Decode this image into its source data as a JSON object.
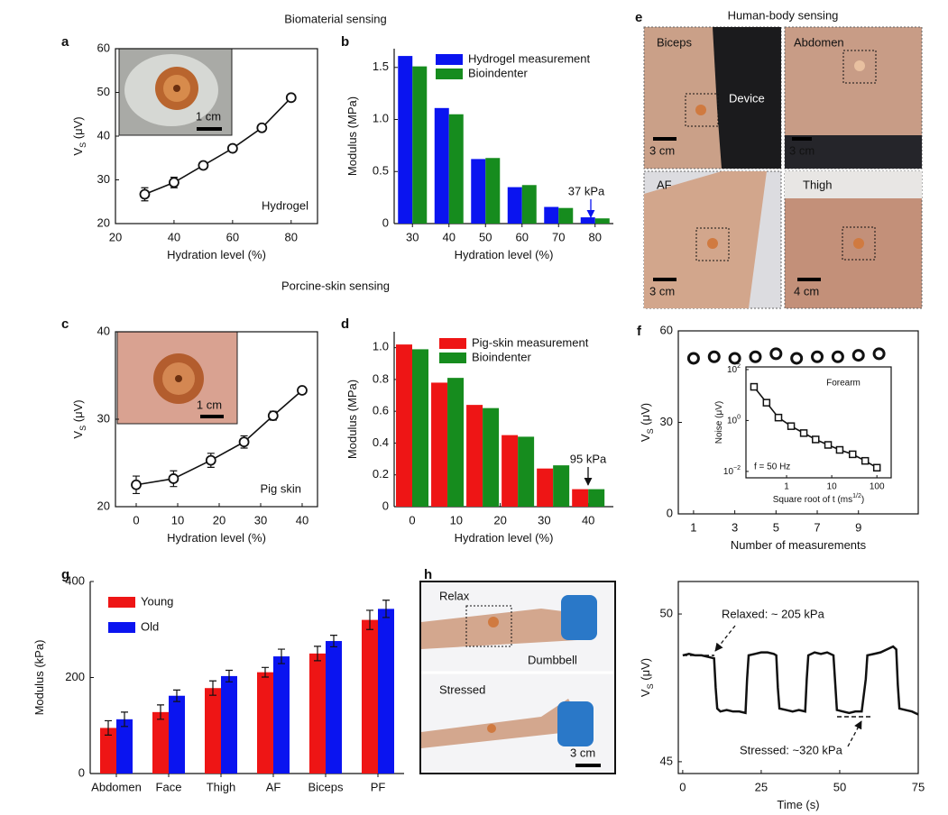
{
  "headings": [
    "Biomaterial sensing",
    "Porcine-skin sensing",
    "Human-body sensing"
  ],
  "photo_panels": [
    {
      "panel": "e",
      "labels": [
        "Biceps",
        "Device",
        "3 cm",
        "Abdomen",
        "3 cm",
        "AF",
        "3 cm",
        "Thigh",
        "4 cm"
      ]
    },
    {
      "panel": "h",
      "labels": [
        "Relax",
        "Dumbbell",
        "Stressed",
        "3 cm"
      ]
    }
  ],
  "chart_data": [
    {
      "type": "line",
      "panel": "a",
      "inset_label": "1 cm",
      "xlabel": "Hydration level (%)",
      "ylabel": "V",
      "ylabel_sub": "S",
      "ylabel_unit": " (μV)",
      "x": [
        30,
        40,
        50,
        60,
        70,
        80
      ],
      "series": [
        {
          "name": "Hydrogel",
          "color": "#111111",
          "marker": "circle",
          "values": [
            26.7,
            29.4,
            33.3,
            37.2,
            41.9,
            48.8
          ],
          "errors": [
            1.5,
            1.2,
            0.8,
            0.6,
            0.5,
            0.6
          ]
        }
      ],
      "annotations": [
        "Hydrogel"
      ],
      "xlim": [
        20,
        89
      ],
      "xticks": [
        20,
        40,
        60,
        80
      ],
      "ylim": [
        20,
        60
      ],
      "yticks": [
        20,
        30,
        40,
        50,
        60
      ]
    },
    {
      "type": "bar",
      "panel": "b",
      "legend": "upper right",
      "xlabel": "Hydration level (%)",
      "ylabel": "Modulus (MPa)",
      "categories": [
        "30",
        "40",
        "50",
        "60",
        "70",
        "80"
      ],
      "series": [
        {
          "name": "Hydrogel measurement",
          "color": "#0a14f0",
          "values": [
            1.61,
            1.11,
            0.62,
            0.35,
            0.16,
            0.06
          ]
        },
        {
          "name": "Bioindenter",
          "color": "#168c1e",
          "values": [
            1.51,
            1.05,
            0.63,
            0.37,
            0.15,
            0.05
          ]
        }
      ],
      "annotations": [
        "37 kPa"
      ],
      "ylim": [
        0,
        1.68
      ],
      "yticks": [
        0,
        0.5,
        {
          "value": 1,
          "label": "1.0"
        },
        1.5
      ]
    },
    {
      "type": "line",
      "panel": "c",
      "inset_label": "1 cm",
      "xlabel": "Hydration level (%)",
      "ylabel": "V",
      "ylabel_sub": "S",
      "ylabel_unit": " (μV)",
      "x": [
        0,
        9,
        18,
        26,
        33,
        40
      ],
      "series": [
        {
          "name": "Pig skin",
          "color": "#111111",
          "marker": "circle",
          "values": [
            22.5,
            23.2,
            25.3,
            27.4,
            30.4,
            33.3
          ],
          "errors": [
            1.0,
            0.9,
            0.8,
            0.7,
            0.5,
            0.4
          ]
        }
      ],
      "annotations": [
        "Pig skin"
      ],
      "xlim": [
        -5,
        43.7
      ],
      "xticks": [
        0,
        10,
        20,
        30,
        40
      ],
      "ylim": [
        20,
        40
      ],
      "yticks": [
        20,
        30,
        40
      ]
    },
    {
      "type": "bar",
      "panel": "d",
      "legend": "upper right",
      "xlabel": "Hydration level (%)",
      "ylabel": "Modulus (MPa)",
      "x": [
        0,
        8,
        16,
        24,
        32,
        40
      ],
      "series": [
        {
          "name": "Pig-skin measurement",
          "color": "#ee1515",
          "values": [
            1.02,
            0.78,
            0.64,
            0.45,
            0.24,
            0.11
          ]
        },
        {
          "name": "Bioindenter",
          "color": "#168c1e",
          "values": [
            0.99,
            0.81,
            0.62,
            0.44,
            0.26,
            0.11
          ]
        }
      ],
      "annotations": [
        "95 kPa"
      ],
      "xlim": [
        -4.1,
        45.7
      ],
      "xticks": [
        0,
        10,
        20,
        30,
        40
      ],
      "ylim": [
        0,
        1.1
      ],
      "yticks": [
        0,
        0.2,
        0.4,
        0.6,
        0.8,
        {
          "value": 1,
          "label": "1.0"
        }
      ]
    },
    {
      "type": "scatter",
      "panel": "f",
      "xlabel": "Number of measurements",
      "ylabel": "V",
      "ylabel_sub": "S",
      "ylabel_unit": " (μV)",
      "x": [
        1,
        2,
        3,
        4,
        5,
        6,
        7,
        8,
        9,
        10
      ],
      "series": [
        {
          "name": "Forearm",
          "color": "#111111",
          "marker": "ring",
          "values": [
            51,
            51.5,
            51,
            51.5,
            52.5,
            51,
            51.5,
            51.5,
            52,
            52.5
          ]
        }
      ],
      "xlim": [
        0.26,
        11.9
      ],
      "xticks": [
        1,
        3,
        5,
        7,
        9
      ],
      "ylim": [
        0,
        60
      ],
      "yticks": [
        0,
        30,
        60
      ]
    },
    {
      "type": "line",
      "xlog": true,
      "ylog": true,
      "xlabel": "Square root of t (ms",
      "xlabel_sup": "1/2",
      "xlabel_end": ")",
      "ylabel": "Noise (μV)",
      "x": [
        0.19,
        0.36,
        0.66,
        1.26,
        2.4,
        4.4,
        8.3,
        15,
        29,
        55,
        100
      ],
      "series": [
        {
          "name": "Forearm",
          "color": "#111111",
          "marker": "square",
          "values": [
            21,
            5,
            1.3,
            0.6,
            0.32,
            0.18,
            0.11,
            0.07,
            0.047,
            0.026,
            0.014
          ]
        }
      ],
      "annotations": [
        "Forearm",
        "f = 50 Hz"
      ],
      "xlim": [
        0.126,
        207
      ],
      "xticks": [
        1,
        10,
        100
      ],
      "ylim": [
        0.0056,
        127
      ],
      "yticks": [
        {
          "value": 0.01,
          "label": "10",
          "exponent": "−2"
        },
        {
          "value": 1,
          "label": "10",
          "exponent": "0"
        },
        {
          "value": 100,
          "label": "10",
          "exponent": "2"
        }
      ]
    },
    {
      "type": "bar",
      "panel": "g",
      "legend": "upper left",
      "ylabel": "Modulus (kPa)",
      "categories": [
        "Abdomen",
        "Face",
        "Thigh",
        "AF",
        "Biceps",
        "PF"
      ],
      "series": [
        {
          "name": "Young",
          "color": "#ee1515",
          "values": [
            95,
            128,
            178,
            211,
            250,
            320
          ],
          "errors": [
            15,
            15,
            15,
            10,
            15,
            20
          ]
        },
        {
          "name": "Old",
          "color": "#0a14f0",
          "values": [
            113,
            162,
            203,
            244,
            276,
            343
          ],
          "errors": [
            15,
            12,
            12,
            15,
            12,
            18
          ]
        }
      ],
      "ylim": [
        0,
        400
      ],
      "yticks": [
        0,
        200,
        400
      ]
    },
    {
      "type": "line",
      "xlabel": "Time (s)",
      "ylabel": "V",
      "ylabel_sub": "S",
      "ylabel_unit": " (μV)",
      "x": [
        0,
        2,
        4,
        6,
        8,
        10,
        10.5,
        11,
        12,
        14,
        16,
        18,
        20,
        20.5,
        21,
        23,
        25,
        27,
        29,
        29.8,
        30.3,
        30.8,
        33,
        35,
        37,
        39,
        39.5,
        40,
        42,
        44,
        46,
        48,
        48.6,
        49.1,
        51,
        53,
        55,
        57,
        58.3,
        58.8,
        61,
        63,
        65,
        67,
        68,
        68.5,
        69,
        71,
        73,
        75
      ],
      "series": [
        {
          "name": "VS",
          "color": "#111111",
          "marker": "none",
          "values": [
            48.6,
            48.65,
            48.6,
            48.6,
            48.55,
            48.5,
            47.5,
            46.8,
            46.7,
            46.75,
            46.7,
            46.7,
            46.65,
            47.8,
            48.6,
            48.65,
            48.7,
            48.7,
            48.65,
            48.6,
            47.5,
            46.8,
            46.75,
            46.7,
            46.75,
            46.7,
            47.8,
            48.6,
            48.7,
            48.65,
            48.7,
            48.6,
            47.6,
            46.75,
            46.7,
            46.65,
            46.7,
            46.7,
            47.8,
            48.6,
            48.65,
            48.7,
            48.8,
            48.9,
            48.8,
            47.6,
            46.8,
            46.75,
            46.7,
            46.6
          ]
        }
      ],
      "annotations": [
        "Relaxed: ~ 205 kPa",
        "Stressed: ~320 kPa"
      ],
      "xlim": [
        -1.4,
        75
      ],
      "xticks": [
        0,
        25,
        50,
        75
      ],
      "ylim": [
        44.6,
        51.1
      ],
      "yticks": [
        45,
        50
      ]
    }
  ]
}
